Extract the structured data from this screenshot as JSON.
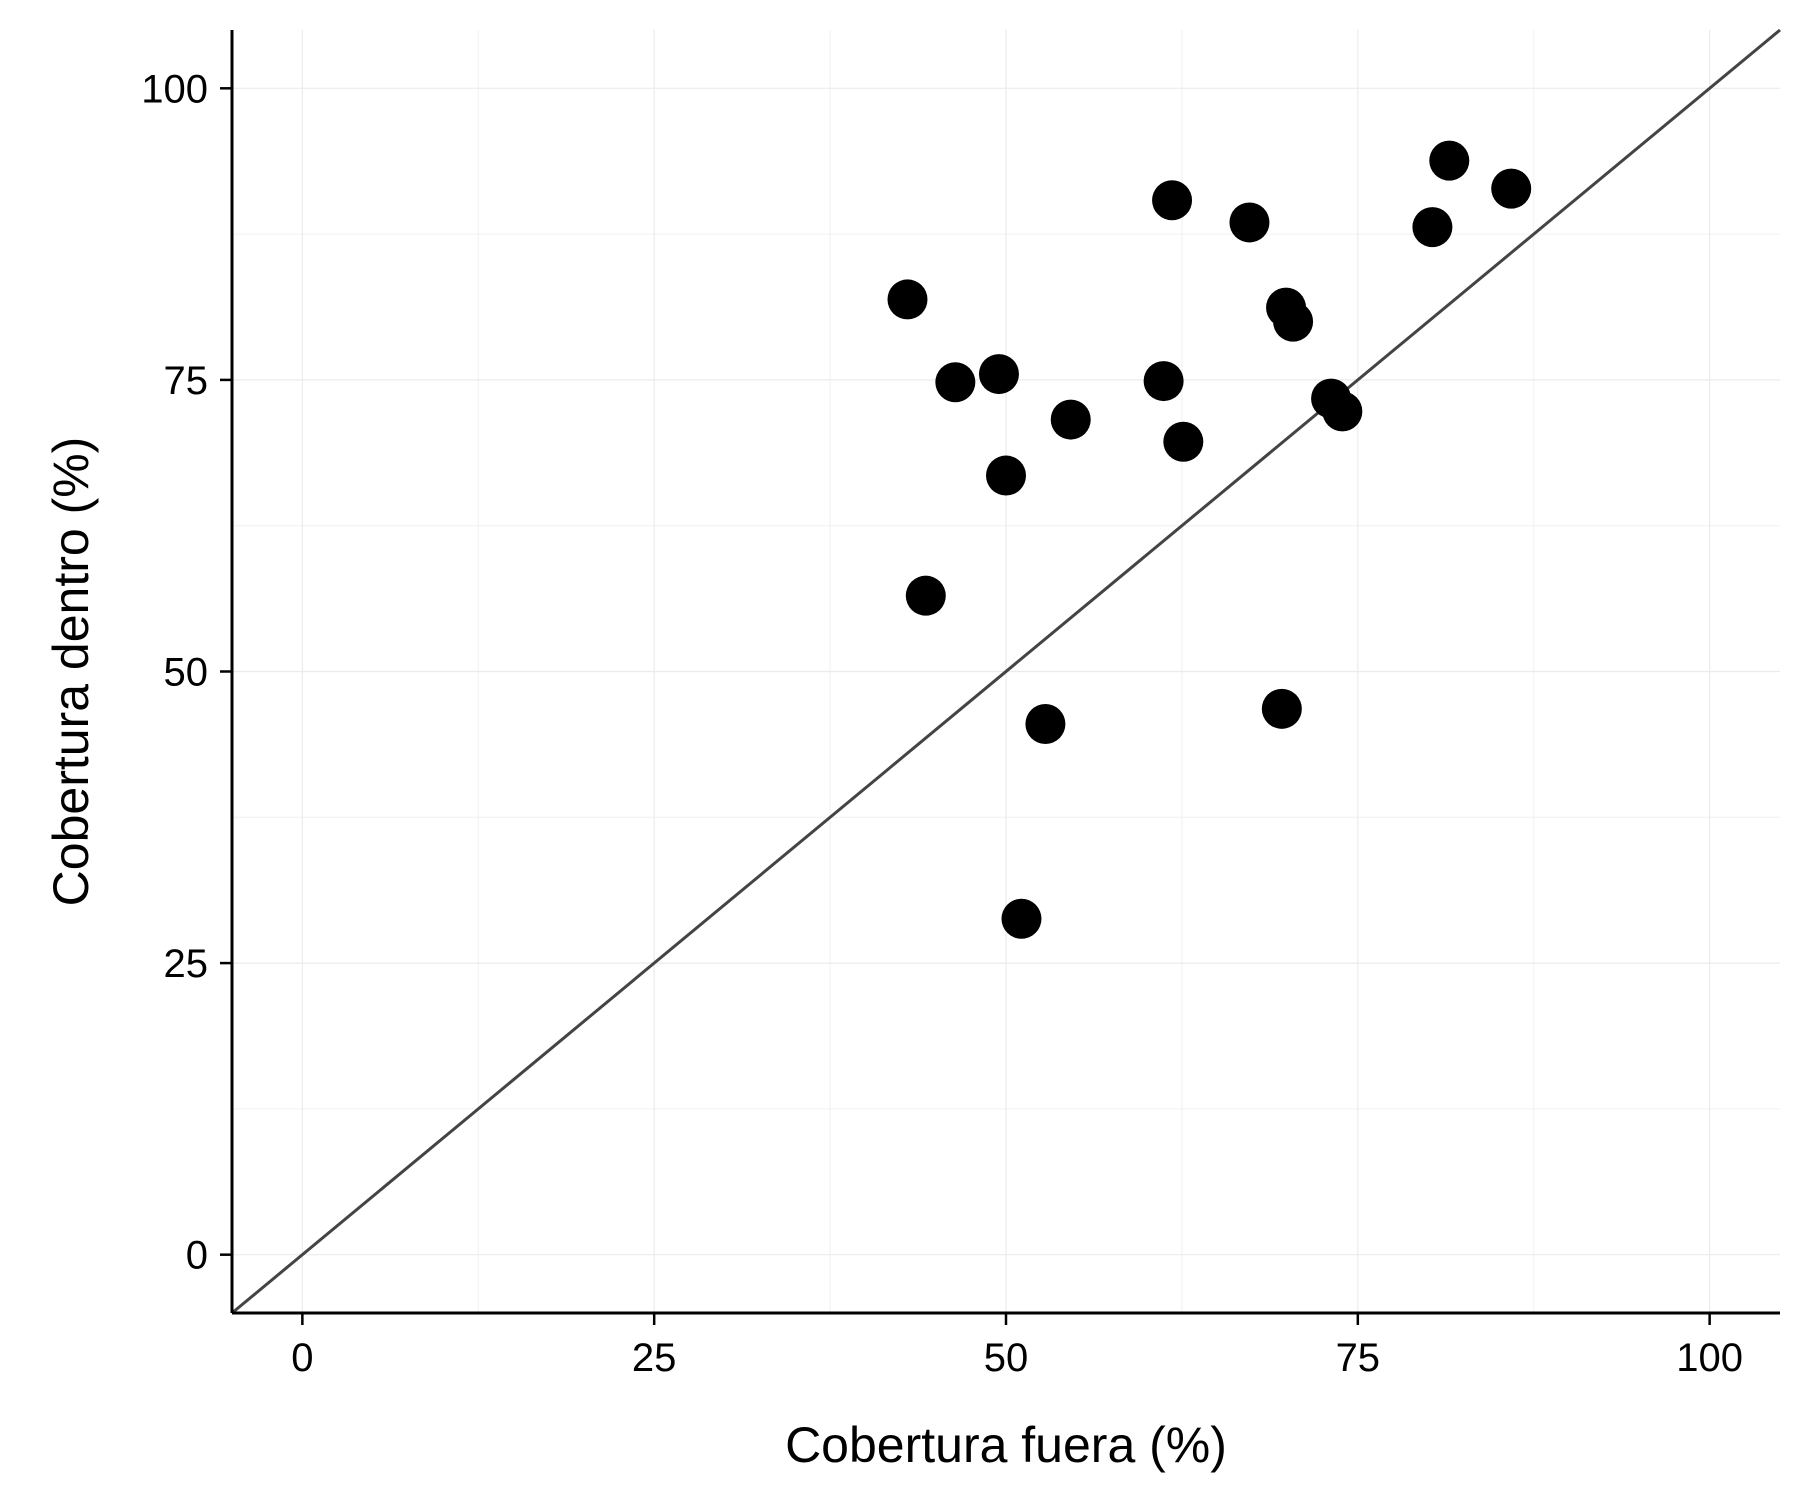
{
  "chart_data": {
    "type": "scatter",
    "title": "",
    "xlabel": "Cobertura fuera (%)",
    "ylabel": "Cobertura dentro (%)",
    "xlim": [
      -5,
      105
    ],
    "ylim": [
      -5,
      105
    ],
    "x_ticks": [
      0,
      25,
      50,
      75,
      100
    ],
    "y_ticks": [
      0,
      25,
      50,
      75,
      100
    ],
    "x_tick_labels": [
      "0",
      "25",
      "50",
      "75",
      "100"
    ],
    "y_tick_labels": [
      "0",
      "25",
      "50",
      "75",
      "100"
    ],
    "grid": true,
    "reference_line": {
      "type": "identity",
      "from": [
        -5,
        -5
      ],
      "to": [
        105,
        105
      ],
      "color": "#444444"
    },
    "point_color": "#000000",
    "series": [
      {
        "points": [
          {
            "x": 43.0,
            "y": 81.9
          },
          {
            "x": 44.3,
            "y": 56.5
          },
          {
            "x": 46.4,
            "y": 74.8
          },
          {
            "x": 49.5,
            "y": 75.5
          },
          {
            "x": 50.0,
            "y": 66.8
          },
          {
            "x": 51.1,
            "y": 28.8
          },
          {
            "x": 52.8,
            "y": 45.5
          },
          {
            "x": 54.6,
            "y": 71.6
          },
          {
            "x": 61.2,
            "y": 74.9
          },
          {
            "x": 61.8,
            "y": 90.4
          },
          {
            "x": 62.6,
            "y": 69.7
          },
          {
            "x": 67.3,
            "y": 88.5
          },
          {
            "x": 69.6,
            "y": 46.8
          },
          {
            "x": 69.9,
            "y": 81.2
          },
          {
            "x": 70.4,
            "y": 80.0
          },
          {
            "x": 73.1,
            "y": 73.4
          },
          {
            "x": 73.9,
            "y": 72.3
          },
          {
            "x": 80.3,
            "y": 88.1
          },
          {
            "x": 81.5,
            "y": 93.8
          },
          {
            "x": 85.9,
            "y": 91.4
          }
        ]
      }
    ]
  }
}
